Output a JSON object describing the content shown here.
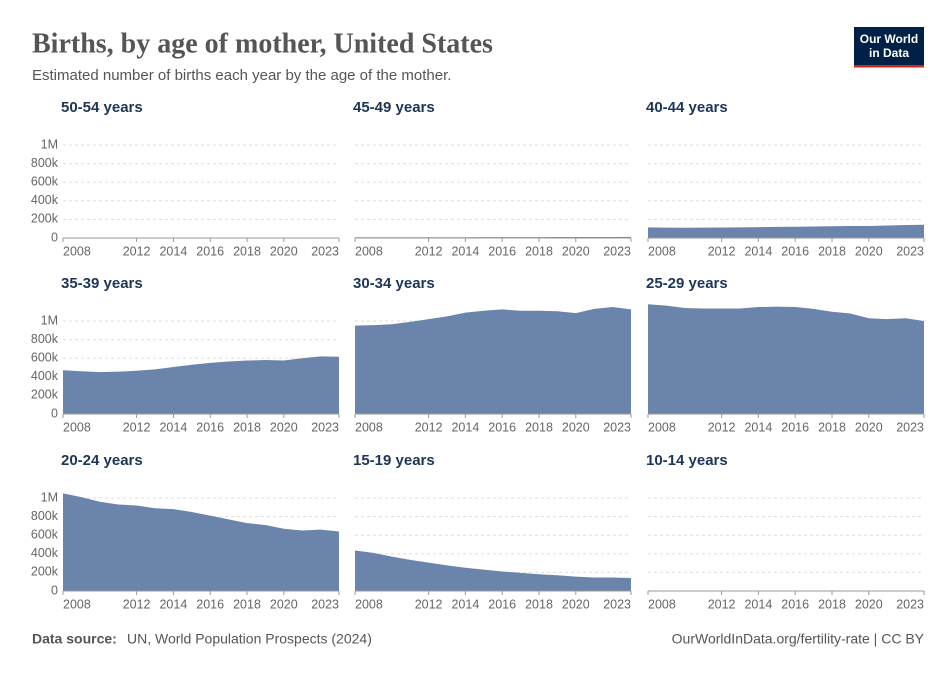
{
  "title": "Births, by age of mother, United States",
  "subtitle": "Estimated number of births each year by the age of the mother.",
  "logo": [
    "Our World",
    "in Data"
  ],
  "source_label": "Data source:",
  "source": "UN, World Population Prospects (2024)",
  "url": "OurWorldInData.org/fertility-rate | CC BY",
  "chart_data": [
    {
      "type": "area",
      "title": "50-54 years",
      "color": "#6b84ac",
      "x": [
        2008,
        2009,
        2010,
        2011,
        2012,
        2013,
        2014,
        2015,
        2016,
        2017,
        2018,
        2019,
        2020,
        2021,
        2022,
        2023
      ],
      "values": [
        600,
        650,
        650,
        700,
        700,
        750,
        800,
        800,
        850,
        900,
        900,
        950,
        950,
        1000,
        1000,
        1050
      ],
      "xlim": [
        2008,
        2023
      ],
      "xticks": [
        2008,
        2012,
        2014,
        2016,
        2018,
        2020,
        2023
      ],
      "ylim": [
        0,
        1200000
      ],
      "yticks": [
        0,
        {
          "value": 200000,
          "label": "200k"
        },
        {
          "value": 400000,
          "label": "400k"
        },
        {
          "value": 600000,
          "label": "600k"
        },
        {
          "value": 800000,
          "label": "800k"
        },
        {
          "value": 1000000,
          "label": "1M"
        }
      ]
    },
    {
      "type": "area",
      "title": "45-49 years",
      "color": "#6b84ac",
      "x": [
        2008,
        2009,
        2010,
        2011,
        2012,
        2013,
        2014,
        2015,
        2016,
        2017,
        2018,
        2019,
        2020,
        2021,
        2022,
        2023
      ],
      "values": [
        7600,
        7800,
        7900,
        8100,
        8300,
        8500,
        8700,
        9000,
        9300,
        9600,
        9900,
        10200,
        10300,
        10800,
        11300,
        11600
      ],
      "xlim": [
        2008,
        2023
      ],
      "xticks": [
        2008,
        2012,
        2014,
        2016,
        2018,
        2020,
        2023
      ],
      "ylim": [
        0,
        1200000
      ],
      "yticks": [
        0,
        200000,
        400000,
        600000,
        800000,
        1000000
      ]
    },
    {
      "type": "area",
      "title": "40-44 years",
      "color": "#6b84ac",
      "x": [
        2008,
        2009,
        2010,
        2011,
        2012,
        2013,
        2014,
        2015,
        2016,
        2017,
        2018,
        2019,
        2020,
        2021,
        2022,
        2023
      ],
      "values": [
        114000,
        112000,
        110000,
        112000,
        113000,
        114000,
        117000,
        119000,
        121000,
        124000,
        127000,
        129000,
        129000,
        134000,
        140000,
        142000
      ],
      "xlim": [
        2008,
        2023
      ],
      "xticks": [
        2008,
        2012,
        2014,
        2016,
        2018,
        2020,
        2023
      ],
      "ylim": [
        0,
        1200000
      ],
      "yticks": [
        0,
        200000,
        400000,
        600000,
        800000,
        1000000
      ]
    },
    {
      "type": "area",
      "title": "35-39 years",
      "color": "#6b84ac",
      "x": [
        2008,
        2009,
        2010,
        2011,
        2012,
        2013,
        2014,
        2015,
        2016,
        2017,
        2018,
        2019,
        2020,
        2021,
        2022,
        2023
      ],
      "values": [
        470000,
        460000,
        450000,
        455000,
        465000,
        480000,
        505000,
        530000,
        550000,
        565000,
        575000,
        580000,
        575000,
        600000,
        620000,
        615000
      ],
      "xlim": [
        2008,
        2023
      ],
      "xticks": [
        2008,
        2012,
        2014,
        2016,
        2018,
        2020,
        2023
      ],
      "ylim": [
        0,
        1200000
      ],
      "yticks": [
        0,
        {
          "value": 200000,
          "label": "200k"
        },
        {
          "value": 400000,
          "label": "400k"
        },
        {
          "value": 600000,
          "label": "600k"
        },
        {
          "value": 800000,
          "label": "800k"
        },
        {
          "value": 1000000,
          "label": "1M"
        }
      ]
    },
    {
      "type": "area",
      "title": "30-34 years",
      "color": "#6b84ac",
      "x": [
        2008,
        2009,
        2010,
        2011,
        2012,
        2013,
        2014,
        2015,
        2016,
        2017,
        2018,
        2019,
        2020,
        2021,
        2022,
        2023
      ],
      "values": [
        950000,
        955000,
        965000,
        990000,
        1020000,
        1050000,
        1090000,
        1110000,
        1125000,
        1110000,
        1110000,
        1105000,
        1085000,
        1130000,
        1150000,
        1125000
      ],
      "xlim": [
        2008,
        2023
      ],
      "xticks": [
        2008,
        2012,
        2014,
        2016,
        2018,
        2020,
        2023
      ],
      "ylim": [
        0,
        1200000
      ],
      "yticks": [
        0,
        200000,
        400000,
        600000,
        800000,
        1000000
      ]
    },
    {
      "type": "area",
      "title": "25-29 years",
      "color": "#6b84ac",
      "x": [
        2008,
        2009,
        2010,
        2011,
        2012,
        2013,
        2014,
        2015,
        2016,
        2017,
        2018,
        2019,
        2020,
        2021,
        2022,
        2023
      ],
      "values": [
        1180000,
        1165000,
        1140000,
        1135000,
        1135000,
        1135000,
        1150000,
        1155000,
        1150000,
        1130000,
        1100000,
        1080000,
        1030000,
        1020000,
        1030000,
        1000000
      ],
      "xlim": [
        2008,
        2023
      ],
      "xticks": [
        2008,
        2012,
        2014,
        2016,
        2018,
        2020,
        2023
      ],
      "ylim": [
        0,
        1200000
      ],
      "yticks": [
        0,
        200000,
        400000,
        600000,
        800000,
        1000000
      ]
    },
    {
      "type": "area",
      "title": "20-24 years",
      "color": "#6b84ac",
      "x": [
        2008,
        2009,
        2010,
        2011,
        2012,
        2013,
        2014,
        2015,
        2016,
        2017,
        2018,
        2019,
        2020,
        2021,
        2022,
        2023
      ],
      "values": [
        1050000,
        1010000,
        960000,
        930000,
        920000,
        890000,
        880000,
        850000,
        810000,
        770000,
        730000,
        710000,
        670000,
        650000,
        660000,
        640000
      ],
      "xlim": [
        2008,
        2023
      ],
      "xticks": [
        2008,
        2012,
        2014,
        2016,
        2018,
        2020,
        2023
      ],
      "ylim": [
        0,
        1200000
      ],
      "yticks": [
        0,
        {
          "value": 200000,
          "label": "200k"
        },
        {
          "value": 400000,
          "label": "400k"
        },
        {
          "value": 600000,
          "label": "600k"
        },
        {
          "value": 800000,
          "label": "800k"
        },
        {
          "value": 1000000,
          "label": "1M"
        }
      ]
    },
    {
      "type": "area",
      "title": "15-19 years",
      "color": "#6b84ac",
      "x": [
        2008,
        2009,
        2010,
        2011,
        2012,
        2013,
        2014,
        2015,
        2016,
        2017,
        2018,
        2019,
        2020,
        2021,
        2022,
        2023
      ],
      "values": [
        435000,
        410000,
        370000,
        335000,
        305000,
        275000,
        250000,
        230000,
        210000,
        195000,
        180000,
        170000,
        155000,
        145000,
        145000,
        140000
      ],
      "xlim": [
        2008,
        2023
      ],
      "xticks": [
        2008,
        2012,
        2014,
        2016,
        2018,
        2020,
        2023
      ],
      "ylim": [
        0,
        1200000
      ],
      "yticks": [
        0,
        200000,
        400000,
        600000,
        800000,
        1000000
      ]
    },
    {
      "type": "area",
      "title": "10-14 years",
      "color": "#6b84ac",
      "x": [
        2008,
        2009,
        2010,
        2011,
        2012,
        2013,
        2014,
        2015,
        2016,
        2017,
        2018,
        2019,
        2020,
        2021,
        2022,
        2023
      ],
      "values": [
        5800,
        5000,
        4500,
        4000,
        3700,
        3300,
        3000,
        2800,
        2600,
        2500,
        2400,
        2300,
        2200,
        2200,
        2100,
        2100
      ],
      "xlim": [
        2008,
        2023
      ],
      "xticks": [
        2008,
        2012,
        2014,
        2016,
        2018,
        2020,
        2023
      ],
      "ylim": [
        0,
        1200000
      ],
      "yticks": [
        0,
        200000,
        400000,
        600000,
        800000,
        1000000
      ]
    }
  ]
}
